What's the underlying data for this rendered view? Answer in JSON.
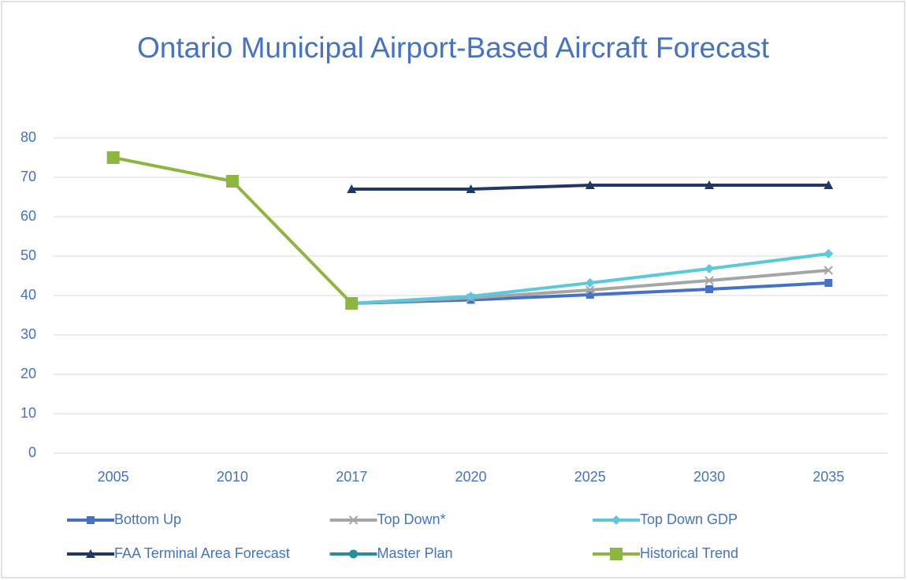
{
  "chart_data": {
    "type": "line",
    "title": "Ontario Municipal Airport-Based Aircraft Forecast",
    "categories": [
      "2005",
      "2010",
      "2017",
      "2020",
      "2025",
      "2030",
      "2035"
    ],
    "ylim": [
      0,
      80
    ],
    "yticks": [
      0,
      10,
      20,
      30,
      40,
      50,
      60,
      70,
      80
    ],
    "grid": true,
    "legend": "bottom",
    "series": [
      {
        "name": "Bottom Up",
        "color": "#4472c4",
        "marker": "square",
        "values": [
          null,
          null,
          38,
          38.9,
          40.2,
          41.6,
          43.2
        ]
      },
      {
        "name": "Top Down*",
        "color": "#a5a5a5",
        "marker": "x",
        "values": [
          null,
          null,
          38,
          39.4,
          41.4,
          43.8,
          46.4
        ]
      },
      {
        "name": "Top Down GDP",
        "color": "#5bc8dc",
        "marker": "diamond",
        "values": [
          null,
          null,
          38,
          39.8,
          43.2,
          46.8,
          50.6
        ]
      },
      {
        "name": "FAA Terminal Area Forecast",
        "color": "#203864",
        "marker": "triangle",
        "values": [
          null,
          null,
          67,
          67,
          68,
          68,
          68
        ]
      },
      {
        "name": "Master Plan",
        "color": "#2a8c9c",
        "marker": "circle",
        "values": [
          null,
          null,
          null,
          null,
          null,
          null,
          null
        ]
      },
      {
        "name": "Historical Trend",
        "color": "#8db640",
        "marker": "bigsquare",
        "values": [
          75,
          69,
          38,
          null,
          null,
          null,
          null
        ]
      }
    ]
  }
}
